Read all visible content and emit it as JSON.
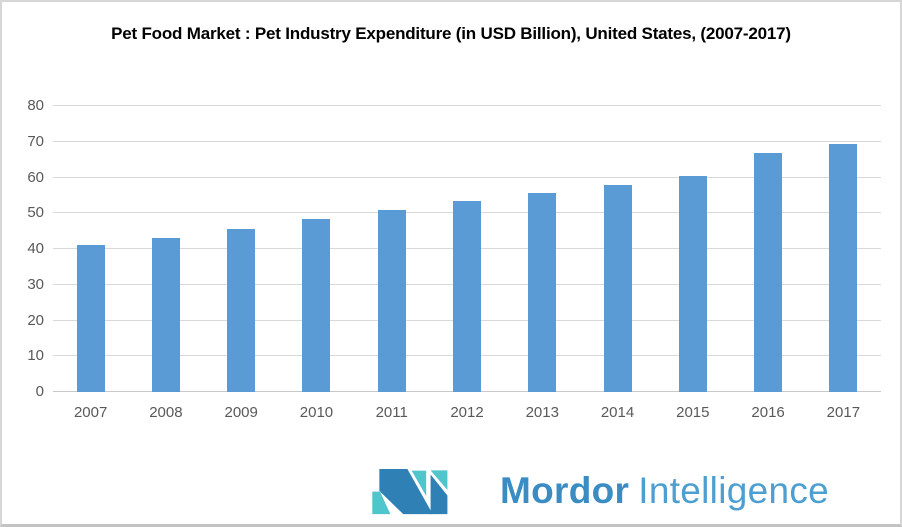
{
  "title": "Pet Food Market : Pet Industry Expenditure (in USD Billion), United States, (2007-2017)",
  "chart_data": {
    "type": "bar",
    "title": "Pet Food Market : Pet Industry Expenditure (in USD Billion), United States, (2007-2017)",
    "categories": [
      "2007",
      "2008",
      "2009",
      "2010",
      "2011",
      "2012",
      "2013",
      "2014",
      "2015",
      "2016",
      "2017"
    ],
    "values": [
      41.2,
      43.2,
      45.5,
      48.4,
      51.0,
      53.4,
      55.7,
      58.0,
      60.3,
      66.8,
      69.5
    ],
    "xlabel": "",
    "ylabel": "",
    "ylim": [
      0,
      80
    ],
    "yticks": [
      0,
      10,
      20,
      30,
      40,
      50,
      60,
      70,
      80
    ],
    "grid": true,
    "legend": false,
    "bar_color": "#5B9BD5",
    "gridline_color": "#d9d9d9",
    "tick_label_color": "#595959"
  },
  "branding": {
    "brand_bold": "Mordor",
    "brand_light": "Intelligence",
    "logo_teal": "#4FC5CC",
    "logo_blue": "#2E80B5"
  }
}
